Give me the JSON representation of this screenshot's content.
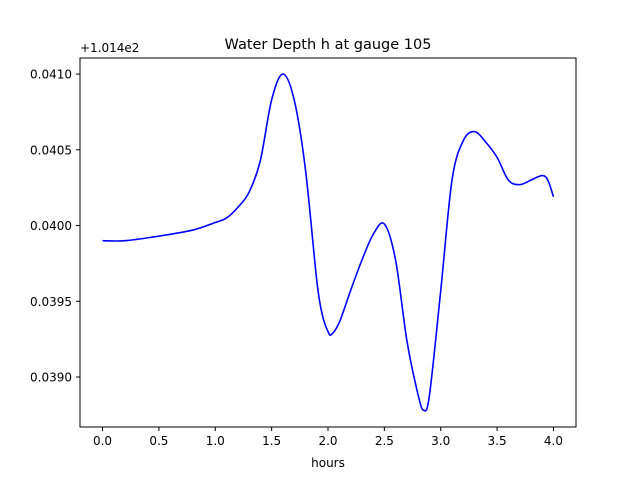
{
  "chart_data": {
    "type": "line",
    "title": "Water Depth h at gauge 105",
    "xlabel": "hours",
    "ylabel": "",
    "offset_label": "+1.014e2",
    "xlim": [
      -0.2,
      4.2
    ],
    "ylim": [
      0.03867,
      0.041106
    ],
    "grid": false,
    "x_ticks": [
      0.0,
      0.5,
      1.0,
      1.5,
      2.0,
      2.5,
      3.0,
      3.5,
      4.0
    ],
    "x_tick_labels": [
      "0.0",
      "0.5",
      "1.0",
      "1.5",
      "2.0",
      "2.5",
      "3.0",
      "3.5",
      "4.0"
    ],
    "y_ticks": [
      0.039,
      0.0395,
      0.04,
      0.0405,
      0.041
    ],
    "y_tick_labels": [
      "0.0390",
      "0.0395",
      "0.0400",
      "0.0405",
      "0.0410"
    ],
    "series": [
      {
        "name": "h",
        "color": "#0000ff",
        "x": [
          0.0,
          0.2,
          0.5,
          0.8,
          1.0,
          1.1,
          1.2,
          1.3,
          1.4,
          1.5,
          1.6,
          1.7,
          1.8,
          1.9,
          1.95,
          2.0,
          2.03,
          2.1,
          2.2,
          2.3,
          2.4,
          2.5,
          2.6,
          2.7,
          2.8,
          2.85,
          2.9,
          3.0,
          3.1,
          3.2,
          3.3,
          3.4,
          3.5,
          3.6,
          3.7,
          3.8,
          3.9,
          3.95,
          4.0
        ],
        "y": [
          0.0399,
          0.0399,
          0.03993,
          0.03997,
          0.04002,
          0.04005,
          0.04012,
          0.04022,
          0.04043,
          0.04083,
          0.041,
          0.04083,
          0.04037,
          0.03964,
          0.03941,
          0.0393,
          0.03928,
          0.03936,
          0.03957,
          0.03977,
          0.03994,
          0.04001,
          0.03977,
          0.03924,
          0.03888,
          0.03878,
          0.03888,
          0.03957,
          0.0403,
          0.04056,
          0.04062,
          0.04055,
          0.04045,
          0.0403,
          0.04027,
          0.0403,
          0.04033,
          0.0403,
          0.04019
        ]
      }
    ]
  }
}
